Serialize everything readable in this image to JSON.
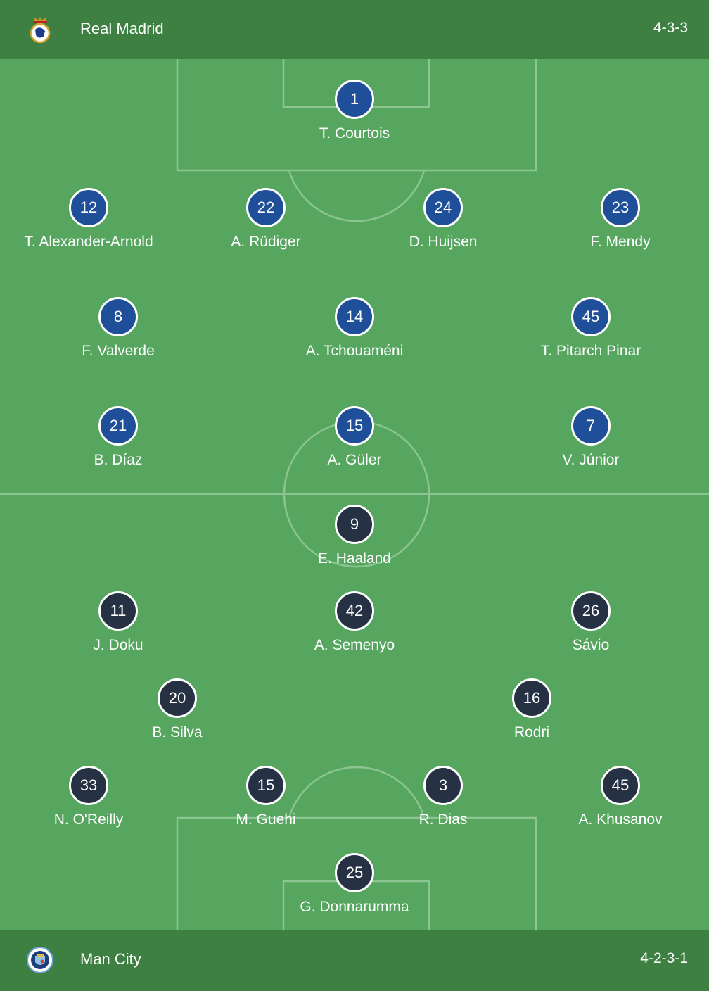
{
  "home": {
    "team": "Real Madrid",
    "formation": "4-3-3",
    "crest_icon": "real-madrid-crest",
    "color": "#1f4f99",
    "rows": [
      [
        {
          "number": "1",
          "name": "T. Courtois"
        }
      ],
      [
        {
          "number": "12",
          "name": "T. Alexander-Arnold"
        },
        {
          "number": "22",
          "name": "A. Rüdiger"
        },
        {
          "number": "24",
          "name": "D. Huijsen"
        },
        {
          "number": "23",
          "name": "F. Mendy"
        }
      ],
      [
        {
          "number": "8",
          "name": "F. Valverde"
        },
        {
          "number": "14",
          "name": "A. Tchouaméni"
        },
        {
          "number": "45",
          "name": "T. Pitarch Pinar"
        }
      ],
      [
        {
          "number": "21",
          "name": "B. Díaz"
        },
        {
          "number": "15",
          "name": "A. Güler"
        },
        {
          "number": "7",
          "name": "V. Júnior"
        }
      ]
    ]
  },
  "away": {
    "team": "Man City",
    "formation": "4-2-3-1",
    "crest_icon": "manchester-city-crest",
    "color": "#263244",
    "rows": [
      [
        {
          "number": "9",
          "name": "E. Haaland"
        }
      ],
      [
        {
          "number": "11",
          "name": "J. Doku"
        },
        {
          "number": "42",
          "name": "A. Semenyo"
        },
        {
          "number": "26",
          "name": "Sávio"
        }
      ],
      [
        {
          "number": "20",
          "name": "B. Silva"
        },
        {
          "number": "16",
          "name": "Rodri"
        }
      ],
      [
        {
          "number": "33",
          "name": "N. O'Reilly"
        },
        {
          "number": "15",
          "name": "M. Guehi"
        },
        {
          "number": "3",
          "name": "R. Dias"
        },
        {
          "number": "45",
          "name": "A. Khusanov"
        }
      ],
      [
        {
          "number": "25",
          "name": "G. Donnarumma"
        }
      ]
    ]
  },
  "colors": {
    "header": "#3d8041",
    "pitch": "#57a65f",
    "lines": "#8cc492"
  }
}
